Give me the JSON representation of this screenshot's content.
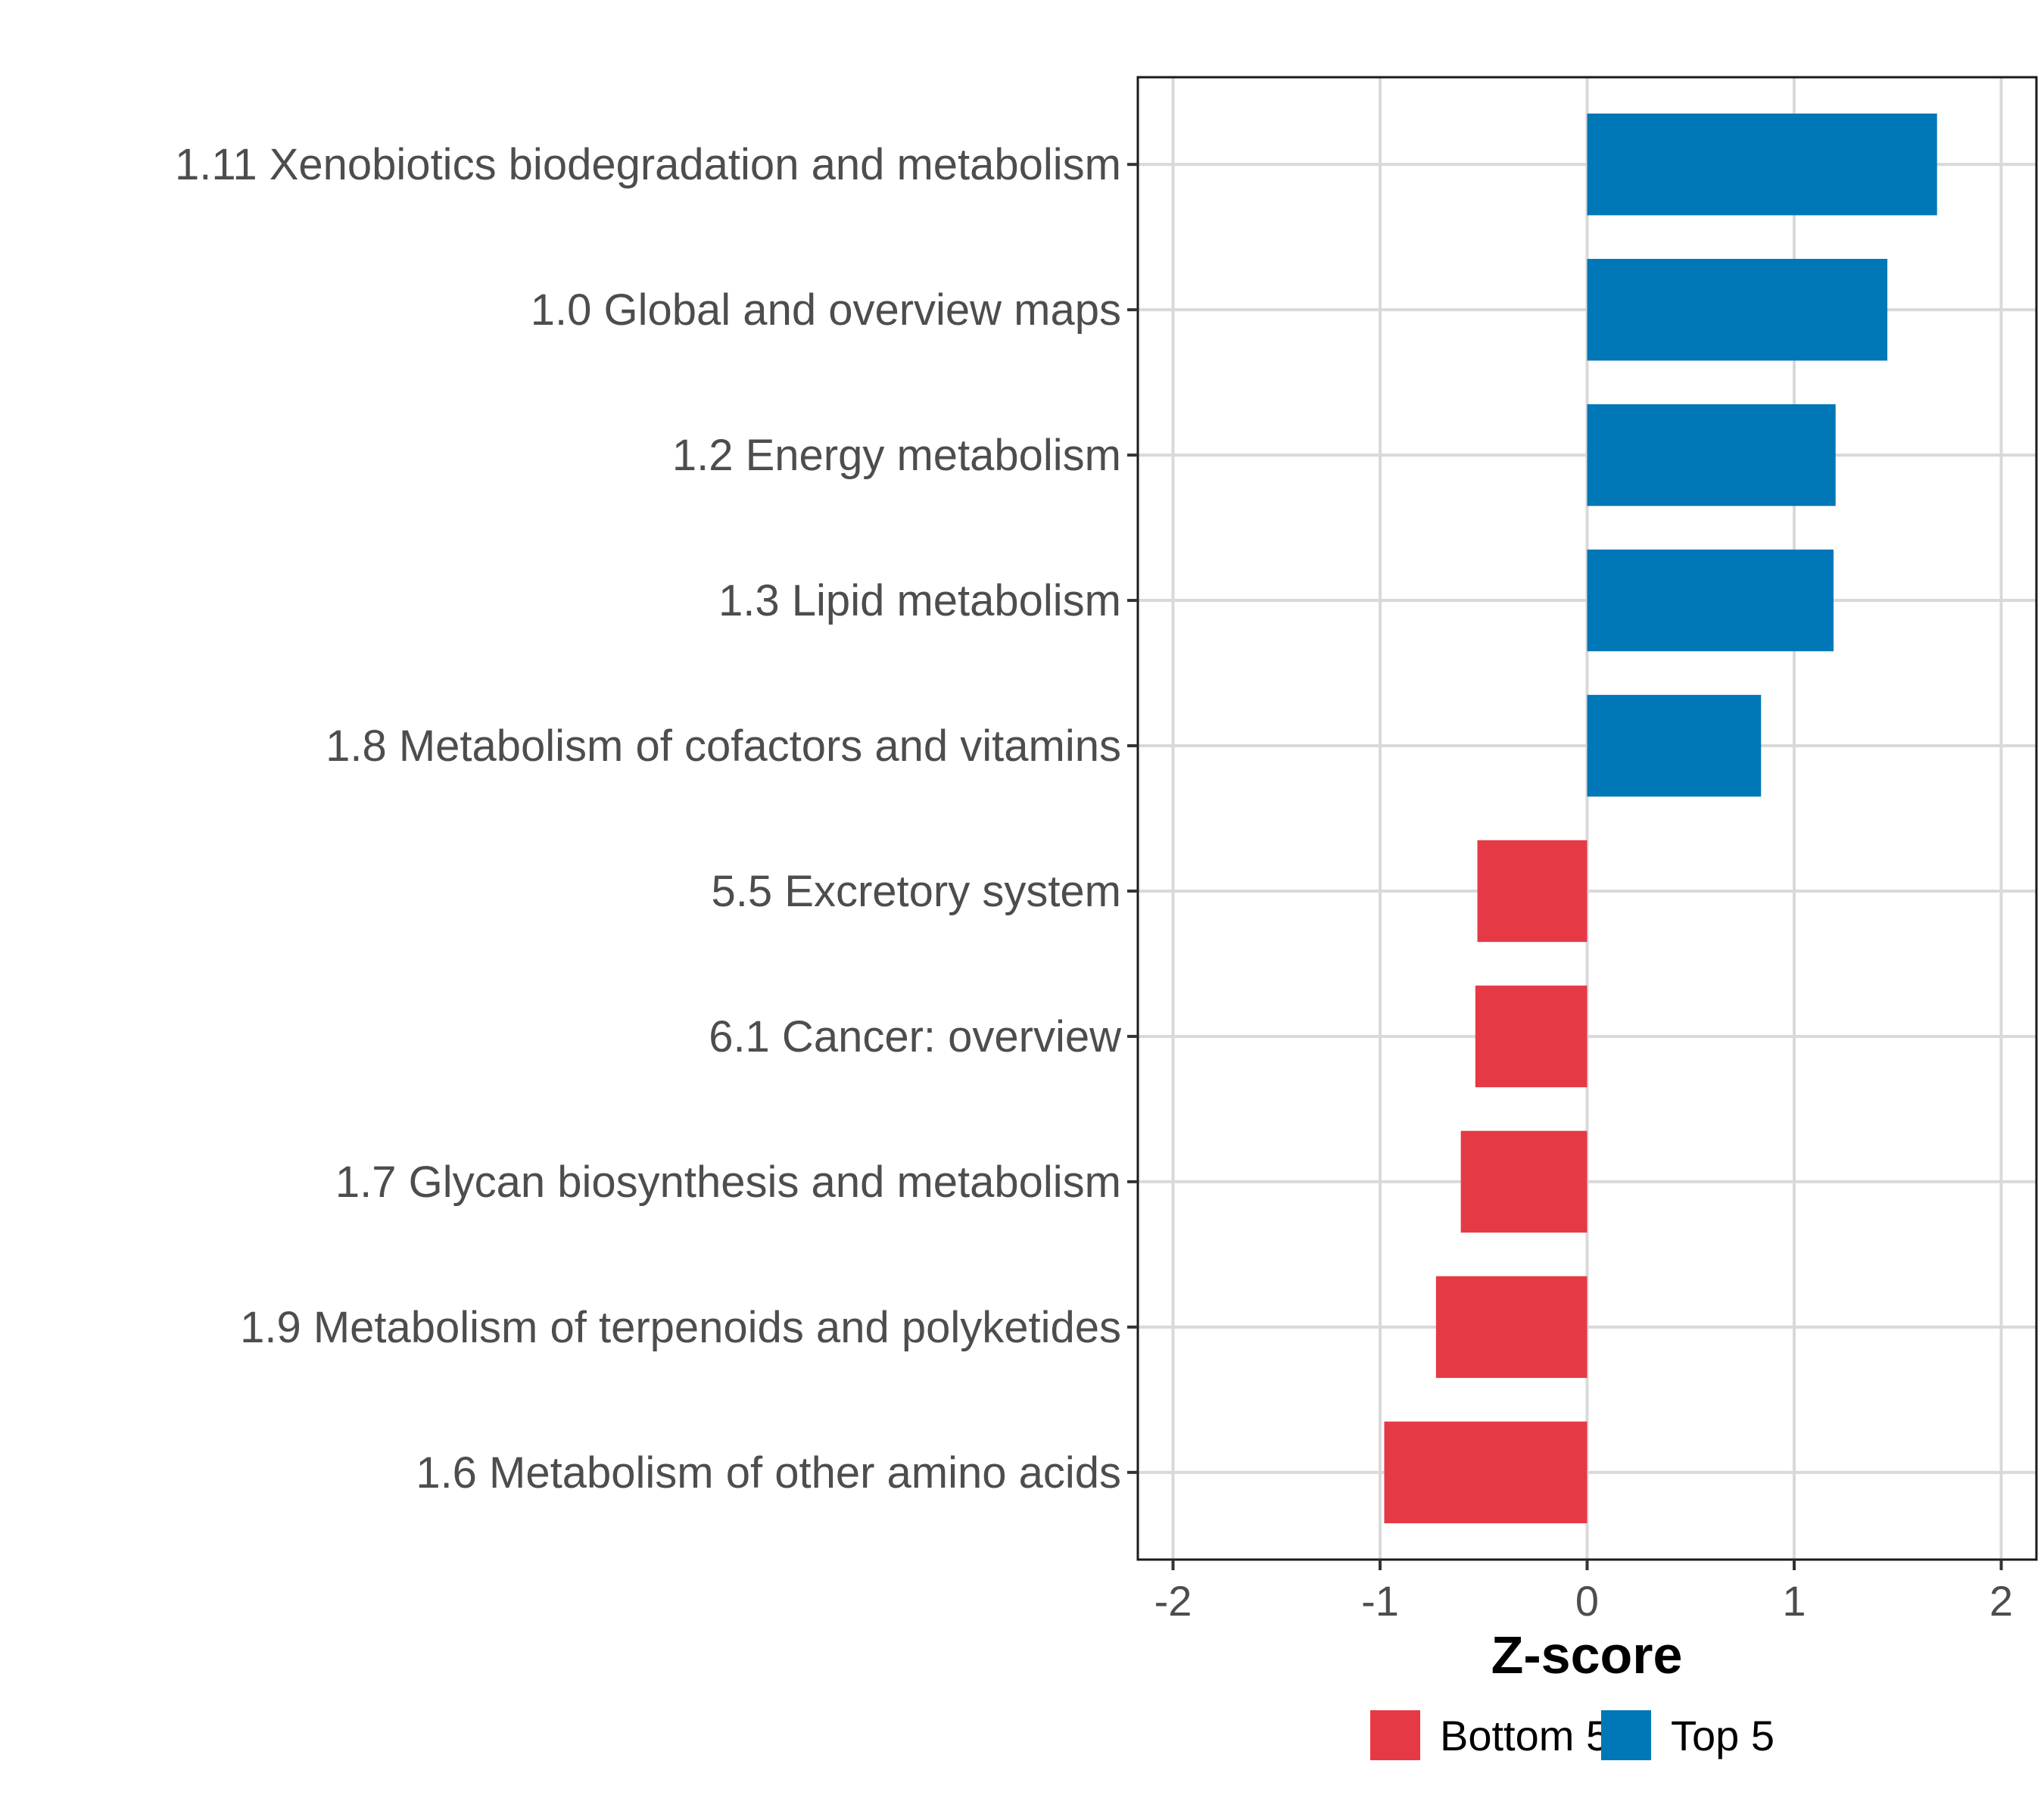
{
  "chart_data": {
    "type": "bar",
    "orientation": "horizontal",
    "categories": [
      "1.11 Xenobiotics biodegradation and metabolism",
      "1.0 Global and overview maps",
      "1.2 Energy metabolism",
      "1.3 Lipid metabolism",
      "1.8 Metabolism of cofactors and vitamins",
      "5.5 Excretory system",
      "6.1 Cancer: overview",
      "1.7 Glycan biosynthesis and metabolism",
      "1.9 Metabolism of terpenoids and polyketides",
      "1.6 Metabolism of other amino acids"
    ],
    "values": [
      1.69,
      1.45,
      1.2,
      1.19,
      0.84,
      -0.53,
      -0.54,
      -0.61,
      -0.73,
      -0.98
    ],
    "groups": [
      "Top 5",
      "Top 5",
      "Top 5",
      "Top 5",
      "Top 5",
      "Bottom 5",
      "Bottom 5",
      "Bottom 5",
      "Bottom 5",
      "Bottom 5"
    ],
    "xlabel": "Z-score",
    "ylabel": "",
    "xlim": [
      -2.17,
      2.17
    ],
    "xticks": [
      -2,
      -1,
      0,
      1,
      2
    ],
    "xtick_labels": [
      "-2",
      "-1",
      "0",
      "1",
      "2"
    ],
    "grid": true,
    "legend": {
      "position": "bottom",
      "entries": [
        {
          "label": "Bottom 5",
          "color": "#e63946"
        },
        {
          "label": "Top 5",
          "color": "#0077b6"
        }
      ]
    }
  }
}
